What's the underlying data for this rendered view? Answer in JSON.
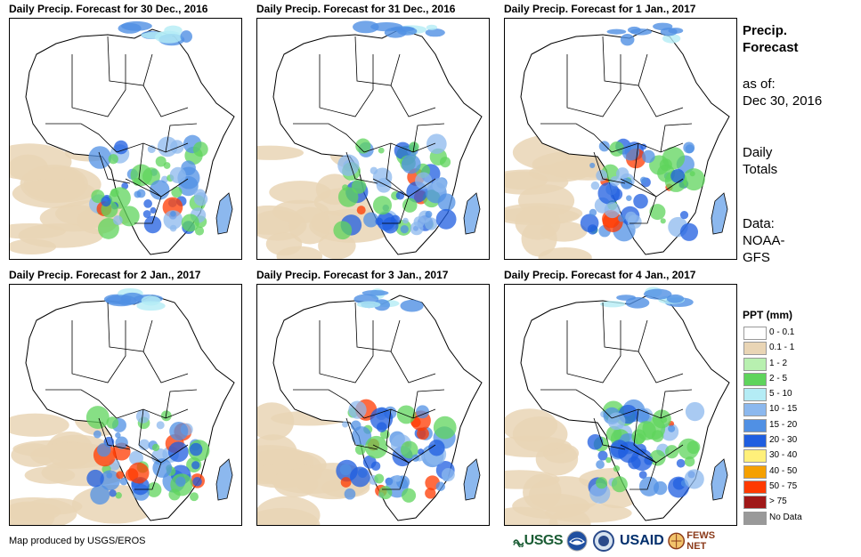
{
  "panels": [
    {
      "title": "Daily Precip. Forecast for 30 Dec., 2016"
    },
    {
      "title": "Daily Precip. Forecast for 31 Dec., 2016"
    },
    {
      "title": "Daily Precip. Forecast for 1 Jan., 2017"
    },
    {
      "title": "Daily Precip. Forecast for 2 Jan., 2017"
    },
    {
      "title": "Daily Precip. Forecast for 3 Jan., 2017"
    },
    {
      "title": "Daily Precip. Forecast for 4 Jan., 2017"
    }
  ],
  "sidebar": {
    "title_line1": "Precip.",
    "title_line2": "Forecast",
    "asof_label": "as of:",
    "asof_date": "Dec 30, 2016",
    "totals_line1": "Daily",
    "totals_line2": "Totals",
    "source_label": "Data:",
    "source_line1": "NOAA-",
    "source_line2": "GFS"
  },
  "legend": {
    "title": "PPT (mm)",
    "items": [
      {
        "label": "0 - 0.1",
        "color": "#ffffff"
      },
      {
        "label": "0.1 - 1",
        "color": "#e9d5b5"
      },
      {
        "label": "1 - 2",
        "color": "#b8f0b0"
      },
      {
        "label": "2 - 5",
        "color": "#5fd45c"
      },
      {
        "label": "5 - 10",
        "color": "#b4ecf5"
      },
      {
        "label": "10 - 15",
        "color": "#8cb8ee"
      },
      {
        "label": "15 - 20",
        "color": "#5090e4"
      },
      {
        "label": "20 - 30",
        "color": "#1f5ee0"
      },
      {
        "label": "30 - 40",
        "color": "#fff07a"
      },
      {
        "label": "40 - 50",
        "color": "#f5a000"
      },
      {
        "label": "50 - 75",
        "color": "#ff3a00"
      },
      {
        "label": "> 75",
        "color": "#a01818"
      },
      {
        "label": "No Data",
        "color": "#999999"
      }
    ]
  },
  "footer": {
    "credit": "Map produced by USGS/EROS",
    "logo_usgs": "USGS",
    "logo_usaid": "USAID",
    "logo_fews": "FEWS NET"
  }
}
